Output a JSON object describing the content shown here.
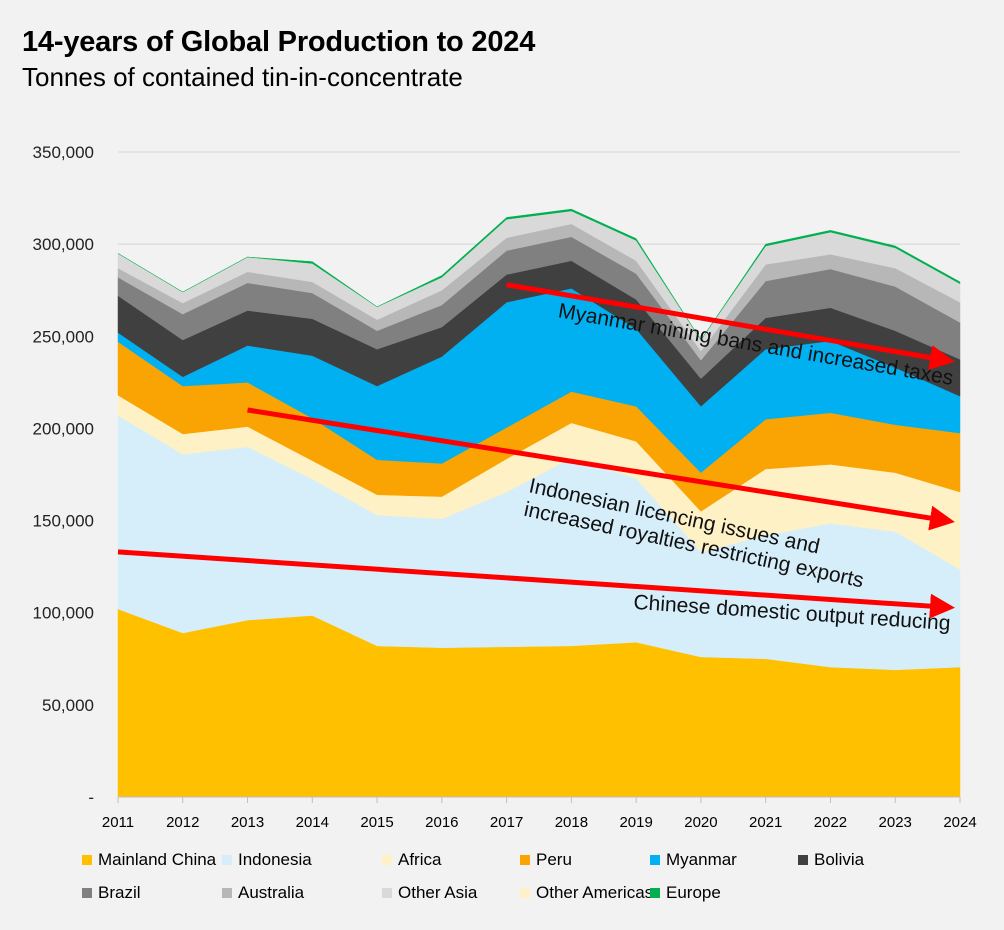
{
  "title": "14-years of Global Production to 2024",
  "subtitle": "Tonnes of contained tin-in-concentrate",
  "chart_data": {
    "type": "area",
    "stacked": true,
    "x": [
      "2011",
      "2012",
      "2013",
      "2014",
      "2015",
      "2016",
      "2017",
      "2018",
      "2019",
      "2020",
      "2021",
      "2022",
      "2023",
      "2024"
    ],
    "ylim": [
      0,
      350000
    ],
    "yticks": [
      0,
      50000,
      100000,
      150000,
      200000,
      250000,
      300000,
      350000
    ],
    "ytick_labels": [
      "-",
      "50,000",
      "100,000",
      "150,000",
      "200,000",
      "250,000",
      "300,000",
      "350,000"
    ],
    "grid": true,
    "legend_position": "bottom",
    "series": [
      {
        "name": "Mainland China",
        "color": "#FFC000",
        "values": [
          102000,
          89000,
          96000,
          98500,
          82000,
          81000,
          81500,
          82000,
          84000,
          76000,
          75000,
          70500,
          69000,
          70500
        ]
      },
      {
        "name": "Indonesia",
        "color": "#D6EEFA",
        "values": [
          105000,
          97000,
          94000,
          74000,
          71000,
          70000,
          84000,
          102000,
          89000,
          57000,
          67000,
          78000,
          75000,
          53000
        ]
      },
      {
        "name": "Africa",
        "color": "#FFF1C6",
        "values": [
          11000,
          11000,
          11000,
          10000,
          11000,
          12000,
          18000,
          19000,
          20000,
          22000,
          36000,
          32000,
          32000,
          42000
        ]
      },
      {
        "name": "Peru",
        "color": "#F9A402",
        "values": [
          29000,
          26000,
          24000,
          23000,
          19000,
          18000,
          17000,
          17000,
          19000,
          21000,
          27000,
          28000,
          26000,
          32000
        ]
      },
      {
        "name": "Myanmar",
        "color": "#00B0F0",
        "values": [
          5000,
          5000,
          20000,
          34000,
          40000,
          58000,
          68000,
          56000,
          42000,
          36000,
          38000,
          39000,
          31000,
          20000
        ]
      },
      {
        "name": "Bolivia",
        "color": "#404040",
        "values": [
          20000,
          20000,
          19000,
          20000,
          20000,
          16000,
          15000,
          15000,
          16000,
          15000,
          17000,
          18000,
          20000,
          20000
        ]
      },
      {
        "name": "Brazil",
        "color": "#808080",
        "values": [
          10000,
          14000,
          15000,
          14000,
          10000,
          12000,
          13000,
          13000,
          14000,
          10000,
          20000,
          21000,
          24000,
          20000
        ]
      },
      {
        "name": "Australia",
        "color": "#B7B7B7",
        "values": [
          5000,
          6000,
          6000,
          6000,
          6000,
          8000,
          7000,
          7000,
          7000,
          5000,
          9000,
          8000,
          10000,
          11000
        ]
      },
      {
        "name": "Other Asia",
        "color": "#D9D9D9",
        "values": [
          8000,
          6000,
          8000,
          10000,
          7000,
          7000,
          10000,
          7000,
          11000,
          6000,
          10000,
          12000,
          11000,
          10000
        ]
      },
      {
        "name": "Other Americas",
        "color": "#FFF1C6",
        "values": [
          0,
          0,
          0,
          0,
          0,
          0,
          0,
          0,
          0,
          0,
          0,
          0,
          0,
          0
        ]
      },
      {
        "name": "Europe",
        "color": "#00B050",
        "values": [
          0,
          0,
          0,
          1000,
          0,
          1000,
          1000,
          1000,
          1000,
          0,
          1000,
          1000,
          1000,
          1000
        ]
      }
    ],
    "annotations": [
      {
        "text": "Myanmar mining bans and increased taxes",
        "arrow_from": [
          "2017",
          278000
        ],
        "arrow_to": [
          "2024",
          237000
        ],
        "text_color": "#ffffff"
      },
      {
        "text_lines": [
          "Indonesian licencing issues and",
          "increased royalties restricting exports"
        ],
        "arrow_from": [
          "2013",
          210000
        ],
        "arrow_to": [
          "2024",
          150000
        ],
        "text_color": "#111111"
      },
      {
        "text": "Chinese domestic output reducing",
        "arrow_from": [
          "2011",
          133000
        ],
        "arrow_to": [
          "2024",
          103000
        ],
        "text_color": "#111111"
      }
    ],
    "arrow_color": "#FF0000"
  }
}
